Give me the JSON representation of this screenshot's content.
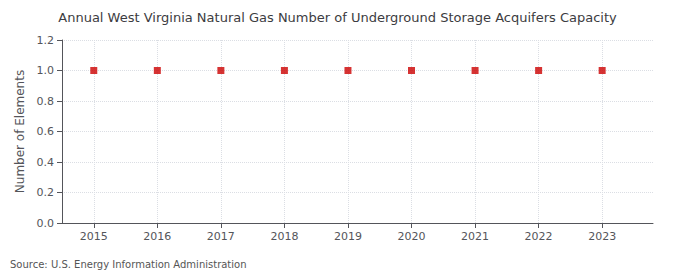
{
  "chart_data": {
    "type": "scatter",
    "title": "Annual West Virginia Natural Gas Number of Underground Storage Acquifers Capacity",
    "ylabel": "Number of Elements",
    "annotation": "Source: U.S. Energy Information Administration",
    "x": [
      2015,
      2016,
      2017,
      2018,
      2019,
      2020,
      2021,
      2022,
      2023
    ],
    "values": [
      1,
      1,
      1,
      1,
      1,
      1,
      1,
      1,
      1
    ],
    "color": "#cc0000",
    "marker": "square",
    "xlim": [
      2014.5,
      2023.8
    ],
    "ylim": [
      0.0,
      1.2
    ],
    "xticks": [
      2015,
      2016,
      2017,
      2018,
      2019,
      2020,
      2021,
      2022,
      2023
    ],
    "yticks": [
      {
        "value": 0,
        "label": "0.0"
      },
      0.2,
      0.4,
      0.6,
      0.8,
      {
        "value": 1,
        "label": "1.0"
      },
      1.2
    ],
    "grid": true
  }
}
